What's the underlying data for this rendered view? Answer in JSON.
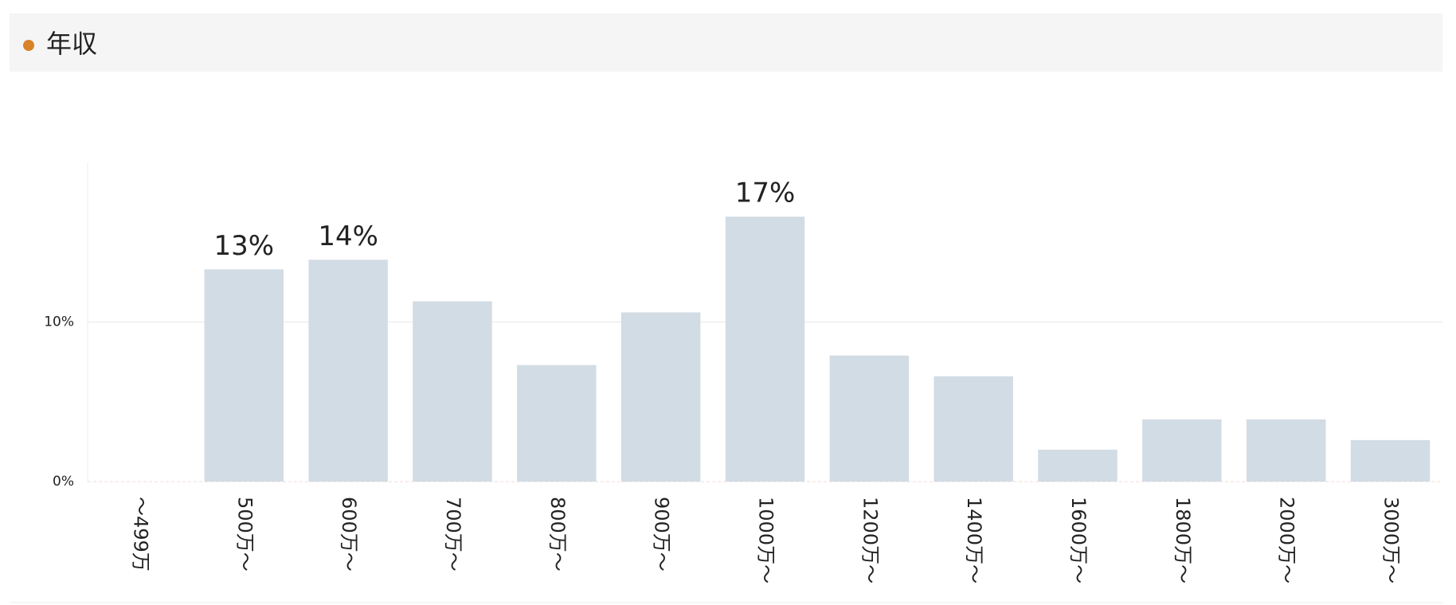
{
  "chart_data": {
    "type": "bar",
    "title": "年収",
    "categories": [
      "～499万",
      "500万～",
      "600万～",
      "700万～",
      "800万～",
      "900万～",
      "1000万～",
      "1200万～",
      "1400万～",
      "1600万～",
      "1800万～",
      "2000万～",
      "3000万～"
    ],
    "values": [
      0,
      13.3,
      13.9,
      11.3,
      7.3,
      10.6,
      16.6,
      7.9,
      6.6,
      2.0,
      3.9,
      3.9,
      2.6
    ],
    "value_labels": [
      null,
      "13%",
      "14%",
      null,
      null,
      null,
      "17%",
      null,
      null,
      null,
      null,
      null,
      null
    ],
    "color": "#d2dce4",
    "ylim": [
      0,
      20
    ],
    "yticks": [
      {
        "value": 0,
        "label": "0%"
      },
      {
        "value": 10,
        "label": "10%"
      }
    ],
    "grid": true
  }
}
